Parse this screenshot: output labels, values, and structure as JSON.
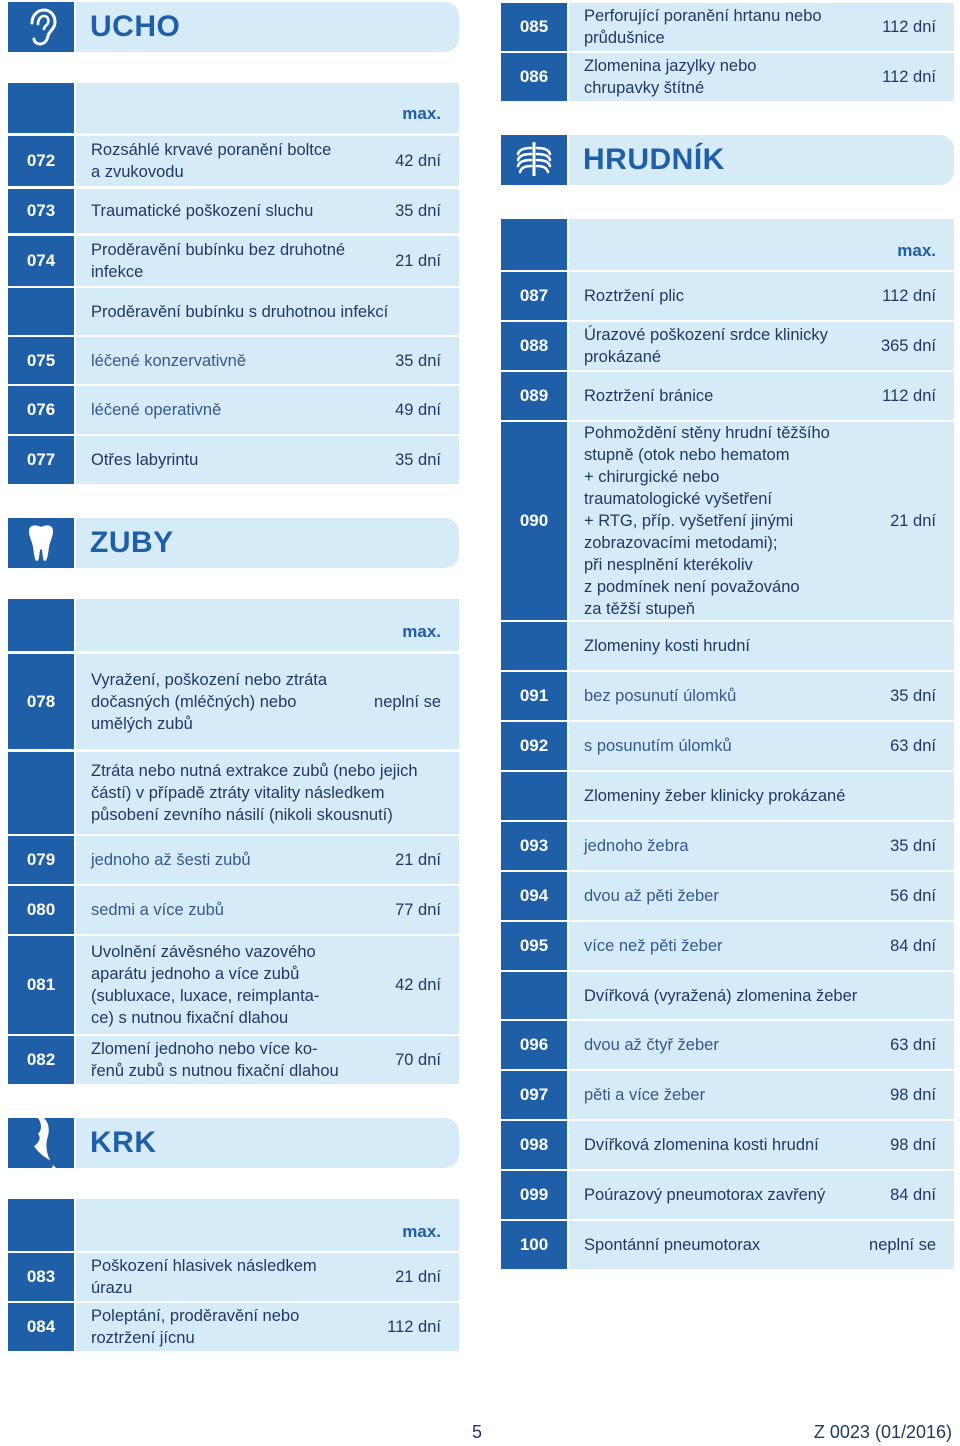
{
  "left": {
    "ucho": {
      "title": "UCHO",
      "icon": "ear-icon",
      "max_label": "max.",
      "rows": [
        {
          "code": "072",
          "desc": "Rozsáhlé krvavé poranění boltce\na zvukovodu",
          "days": "42 dní"
        },
        {
          "code": "073",
          "desc": "Traumatické poškození sluchu",
          "days": "35 dní"
        },
        {
          "code": "074",
          "desc": "Proděravění bubínku bez druhotné\ninfekce",
          "days": "21 dní"
        },
        {
          "code": "",
          "desc": "Proděravění bubínku s druhotnou infekcí",
          "days": ""
        },
        {
          "code": "075",
          "desc": "léčené konzervativně",
          "days": "35 dní"
        },
        {
          "code": "076",
          "desc": "léčené operativně",
          "days": "49 dní"
        },
        {
          "code": "077",
          "desc": "Otřes labyrintu",
          "days": "35 dní"
        }
      ]
    },
    "zuby": {
      "title": "ZUBY",
      "icon": "tooth-icon",
      "max_label": "max.",
      "rows": [
        {
          "code": "078",
          "desc": "Vyražení, poškození nebo ztráta\ndočasných (mléčných) nebo\numělých zubů",
          "days": "neplní se"
        },
        {
          "code": "",
          "desc": "Ztráta nebo nutná extrakce zubů (nebo jejich\nčástí) v případě ztráty vitality následkem\npůsobení zevního násilí (nikoli skousnutí)",
          "days": ""
        },
        {
          "code": "079",
          "desc": "jednoho až šesti zubů",
          "days": "21 dní"
        },
        {
          "code": "080",
          "desc": "sedmi a více zubů",
          "days": "77 dní"
        },
        {
          "code": "081",
          "desc": "Uvolnění závěsného vazového\naparátu jednoho a více zubů\n(subluxace, luxace, reimplanta-\nce) s nutnou fixační dlahou",
          "days": "42 dní"
        },
        {
          "code": "082",
          "desc": "Zlomení jednoho nebo více ko-\nřenů zubů s nutnou fixační dlahou",
          "days": "70 dní"
        }
      ]
    },
    "krk": {
      "title": "KRK",
      "icon": "neck-icon",
      "max_label": "max.",
      "rows": [
        {
          "code": "083",
          "desc": "Poškození hlasivek následkem\núrazu",
          "days": "21 dní"
        },
        {
          "code": "084",
          "desc": "Poleptání, proděravění nebo\nroztržení jícnu",
          "days": "112 dní"
        }
      ]
    }
  },
  "right": {
    "krk_cont": {
      "rows": [
        {
          "code": "085",
          "desc": "Perforující poranění hrtanu nebo\nprůdušnice",
          "days": "112 dní"
        },
        {
          "code": "086",
          "desc": "Zlomenina jazylky nebo\nchrupavky štítné",
          "days": "112 dní"
        }
      ]
    },
    "hrudnik": {
      "title": "HRUDNÍK",
      "icon": "ribcage-icon",
      "max_label": "max.",
      "rows": [
        {
          "code": "087",
          "desc": "Roztržení plic",
          "days": "112 dní"
        },
        {
          "code": "088",
          "desc": "Úrazové poškození srdce klinicky\nprokázané",
          "days": "365 dní"
        },
        {
          "code": "089",
          "desc": "Roztržení bránice",
          "days": "112 dní"
        },
        {
          "code": "090",
          "desc": "Pohmoždění stěny hrudní těžšího\nstupně (otok nebo hematom\n+ chirurgické nebo\ntraumatologické vyšetření\n+ RTG, příp. vyšetření jinými\nzobrazovacími metodami);\npři nesplnění kterékoliv\nz podmínek není považováno\nza těžší stupeň",
          "days": "21 dní"
        },
        {
          "code": "",
          "desc": "Zlomeniny kosti hrudní",
          "days": ""
        },
        {
          "code": "091",
          "desc": "bez posunutí úlomků",
          "days": "35 dní"
        },
        {
          "code": "092",
          "desc": "s posunutím úlomků",
          "days": "63 dní"
        },
        {
          "code": "",
          "desc": "Zlomeniny žeber klinicky prokázané",
          "days": ""
        },
        {
          "code": "093",
          "desc": "jednoho žebra",
          "days": "35 dní"
        },
        {
          "code": "094",
          "desc": "dvou až pěti žeber",
          "days": "56 dní"
        },
        {
          "code": "095",
          "desc": "více než pěti žeber",
          "days": "84 dní"
        },
        {
          "code": "",
          "desc": "Dvířková (vyražená) zlomenina žeber",
          "days": ""
        },
        {
          "code": "096",
          "desc": "dvou až čtyř žeber",
          "days": "63 dní"
        },
        {
          "code": "097",
          "desc": "pěti a více žeber",
          "days": "98 dní"
        },
        {
          "code": "098",
          "desc": "Dvířková zlomenina kosti hrudní",
          "days": "98 dní"
        },
        {
          "code": "099",
          "desc": "Poúrazový pneumotorax zavřený",
          "days": "84 dní"
        },
        {
          "code": "100",
          "desc": "Spontánní pneumotorax",
          "days": "neplní se"
        }
      ]
    }
  },
  "footer": {
    "page": "5",
    "doc_code": "Z 0023 (01/2016)"
  },
  "colors": {
    "accent": "#1f5fa8",
    "row_bg": "#d6ebf8",
    "text": "#1d3a64"
  }
}
